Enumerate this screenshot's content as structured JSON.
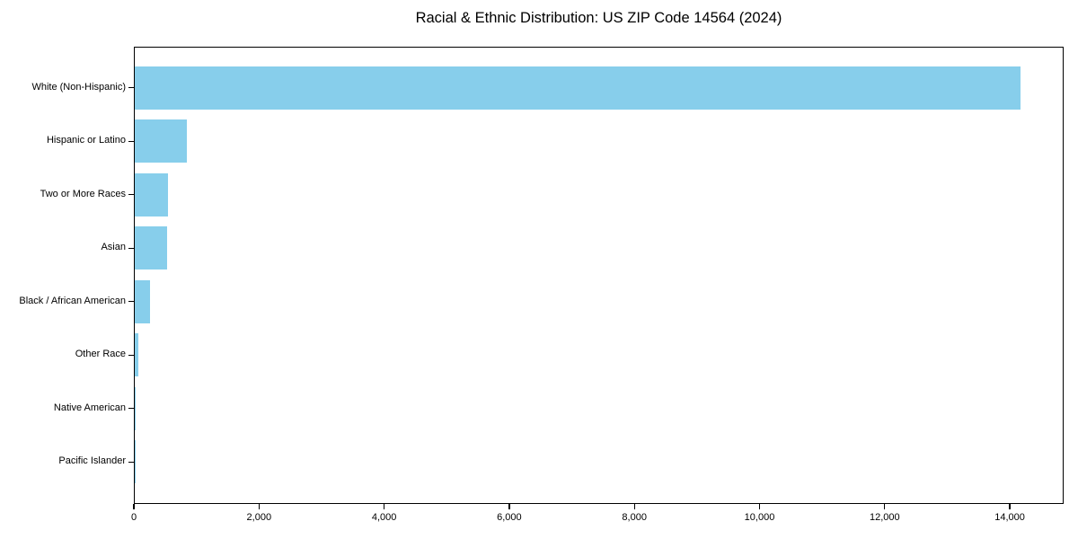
{
  "title": "Racial & Ethnic Distribution: US ZIP Code 14564 (2024)",
  "chart_data": {
    "type": "bar",
    "orientation": "horizontal",
    "title": "Racial & Ethnic Distribution: US ZIP Code 14564 (2024)",
    "xlabel": "",
    "ylabel": "",
    "categories": [
      "White (Non-Hispanic)",
      "Hispanic or Latino",
      "Two or More Races",
      "Asian",
      "Black / African American",
      "Other Race",
      "Native American",
      "Pacific Islander"
    ],
    "values": [
      14160,
      830,
      530,
      515,
      240,
      55,
      10,
      3
    ],
    "xlim": [
      0,
      14860
    ],
    "x_ticks": [
      0,
      2000,
      4000,
      6000,
      8000,
      10000,
      12000,
      14000
    ],
    "x_tick_labels": [
      "0",
      "2,000",
      "4,000",
      "6,000",
      "8,000",
      "10,000",
      "12,000",
      "14,000"
    ],
    "bar_color": "#87CEEB",
    "axis_color": "#000000",
    "background_color": "#ffffff",
    "grid": false,
    "legend": "none"
  }
}
